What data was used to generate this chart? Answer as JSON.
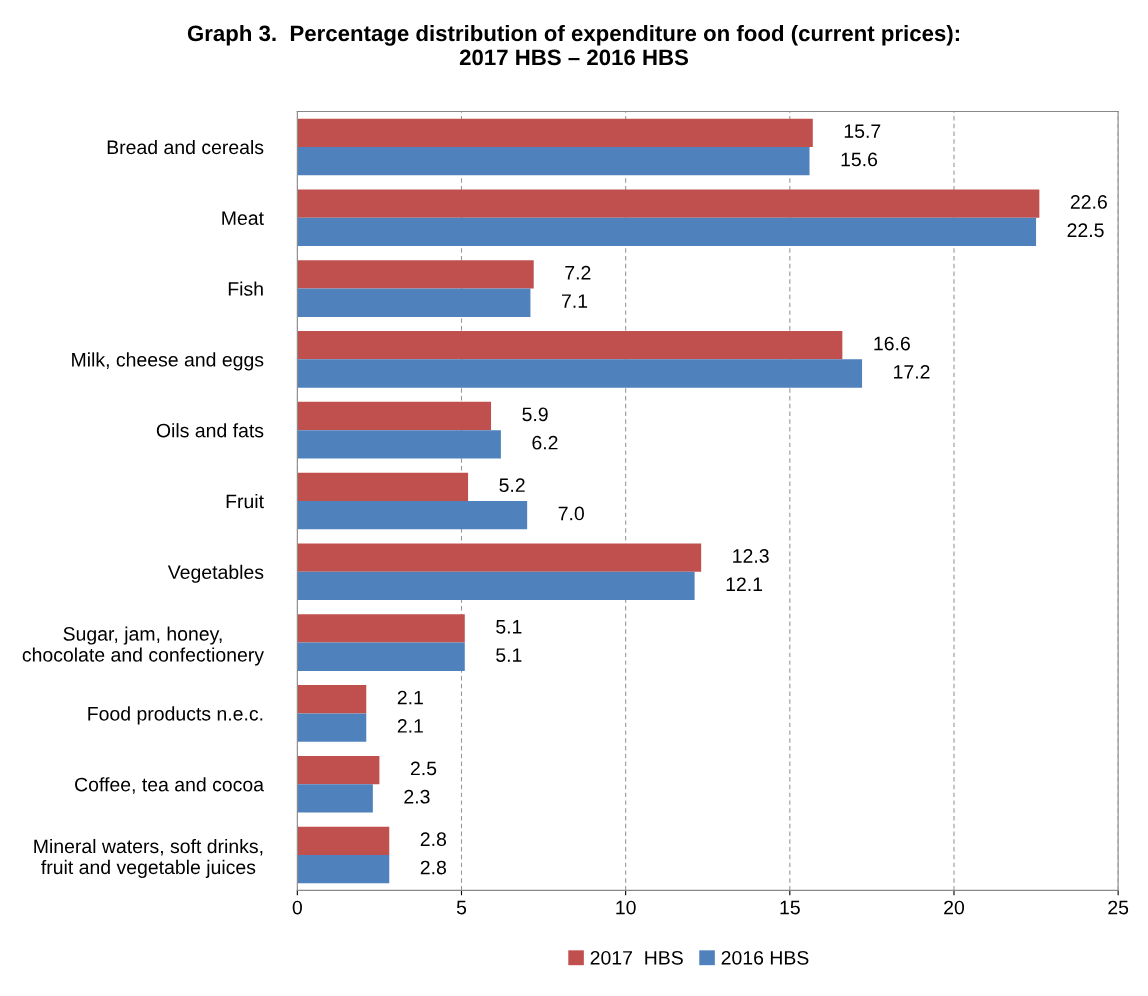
{
  "chart_data": {
    "type": "bar",
    "orientation": "horizontal",
    "title": "Graph 3.  Percentage distribution of expenditure on food (current prices):\n2017 HBS – 2016 HBS",
    "categories": [
      "Bread and cereals",
      "Meat",
      "Fish",
      "Milk, cheese and eggs",
      "Oils and fats",
      "Fruit",
      "Vegetables",
      "Sugar, jam, honey,\nchocolate and confectionery",
      "Food products n.e.c.",
      "Coffee, tea and cocoa",
      "Mineral waters, soft drinks,\nfruit and vegetable juices"
    ],
    "series": [
      {
        "name": "2017  HBS",
        "color": "#c0504d",
        "values": [
          15.7,
          22.6,
          7.2,
          16.6,
          5.9,
          5.2,
          12.3,
          5.1,
          2.1,
          2.5,
          2.8
        ],
        "value_labels": [
          "15.7",
          "22.6",
          "7.2",
          "16.6",
          "5.9",
          "5.2",
          "12.3",
          "5.1",
          "2.1",
          "2.5",
          "2.8"
        ]
      },
      {
        "name": "2016 HBS",
        "color": "#4f81bd",
        "values": [
          15.6,
          22.5,
          7.1,
          17.2,
          6.2,
          7.0,
          12.1,
          5.1,
          2.1,
          2.3,
          2.8
        ],
        "value_labels": [
          "15.6",
          "22.5",
          "7.1",
          "17.2",
          "6.2",
          "7.0",
          "12.1",
          "5.1",
          "2.1",
          "2.3",
          "2.8"
        ]
      }
    ],
    "xlim": [
      0,
      25
    ],
    "xticks": [
      0,
      5,
      10,
      15,
      20,
      25
    ],
    "grid": "x",
    "legend": "bottom"
  }
}
